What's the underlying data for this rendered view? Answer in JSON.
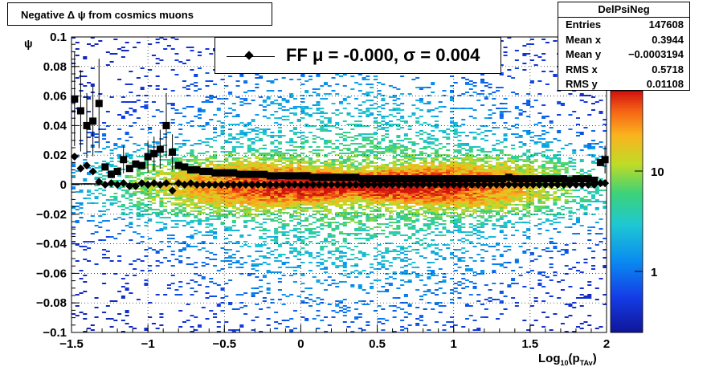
{
  "title": "Negative Δ ψ from cosmics muons",
  "stats": {
    "name": "DelPsiNeg",
    "rows": [
      {
        "label": "Entries",
        "value": "147608"
      },
      {
        "label": "Mean x",
        "value": "0.3944"
      },
      {
        "label": "Mean y",
        "value": "−0.0003194"
      },
      {
        "label": "RMS x",
        "value": "0.5718"
      },
      {
        "label": "RMS y",
        "value": "0.01108"
      }
    ]
  },
  "legend": {
    "text": "FF μ = -0.000, σ =   0.004"
  },
  "chart_data": {
    "type": "heatmap",
    "title": "Negative Δ ψ from cosmics muons",
    "xlabel": "Log10(pTAv)",
    "ylabel": "ψ",
    "xlim": [
      -1.5,
      2
    ],
    "ylim": [
      -0.1,
      0.1
    ],
    "x_ticks": [
      "−1.5",
      "−1",
      "−0.5",
      "0",
      "0.5",
      "1",
      "1.5",
      "2"
    ],
    "y_ticks": [
      "0.1",
      "0.08",
      "0.06",
      "0.04",
      "0.02",
      "0",
      "−0.02",
      "−0.04",
      "−0.06",
      "−0.08",
      "−0.1"
    ],
    "colorbar_ticks": [
      "10",
      "1"
    ],
    "colorbar_scale": "log",
    "grid": true,
    "heatmap_peak": {
      "x": 0.35,
      "y": 0.0,
      "sigma_x": 0.5718,
      "sigma_y": 0.0045
    },
    "series": [
      {
        "name": "",
        "marker": "square",
        "description": "sigma (RMS) per x bin",
        "x": [
          -1.48,
          -1.44,
          -1.4,
          -1.36,
          -1.32,
          -1.28,
          -1.24,
          -1.2,
          -1.16,
          -1.12,
          -1.08,
          -1.04,
          -1.0,
          -0.96,
          -0.92,
          -0.88,
          -0.84,
          -0.8,
          -0.76,
          -0.72,
          -0.68,
          -0.64,
          -0.6,
          -0.56,
          -0.52,
          -0.48,
          -0.44,
          -0.4,
          -0.36,
          -0.32,
          -0.28,
          -0.24,
          -0.2,
          -0.16,
          -0.12,
          -0.08,
          -0.04,
          0.0,
          0.04,
          0.08,
          0.12,
          0.16,
          0.2,
          0.24,
          0.28,
          0.32,
          0.36,
          0.4,
          0.44,
          0.48,
          0.52,
          0.56,
          0.6,
          0.64,
          0.68,
          0.72,
          0.76,
          0.8,
          0.84,
          0.88,
          0.92,
          0.96,
          1.0,
          1.04,
          1.08,
          1.12,
          1.16,
          1.2,
          1.24,
          1.28,
          1.32,
          1.36,
          1.4,
          1.44,
          1.48,
          1.52,
          1.56,
          1.6,
          1.64,
          1.68,
          1.72,
          1.76,
          1.8,
          1.84,
          1.88,
          1.92,
          1.96,
          1.99
        ],
        "y": [
          0.058,
          0.05,
          0.04,
          0.043,
          0.055,
          0.012,
          0.007,
          0.009,
          0.017,
          0.011,
          0.014,
          0.013,
          0.019,
          0.021,
          0.024,
          0.04,
          0.022,
          0.013,
          0.012,
          0.01,
          0.01,
          0.009,
          0.009,
          0.008,
          0.008,
          0.008,
          0.008,
          0.007,
          0.007,
          0.007,
          0.007,
          0.007,
          0.006,
          0.006,
          0.006,
          0.006,
          0.006,
          0.006,
          0.006,
          0.005,
          0.005,
          0.005,
          0.005,
          0.005,
          0.005,
          0.005,
          0.005,
          0.004,
          0.004,
          0.004,
          0.004,
          0.004,
          0.004,
          0.004,
          0.004,
          0.004,
          0.004,
          0.004,
          0.004,
          0.004,
          0.004,
          0.004,
          0.004,
          0.004,
          0.004,
          0.004,
          0.004,
          0.004,
          0.004,
          0.004,
          0.004,
          0.005,
          0.004,
          0.004,
          0.004,
          0.004,
          0.004,
          0.004,
          0.004,
          0.004,
          0.004,
          0.003,
          0.004,
          0.004,
          0.004,
          0.003,
          0.015,
          0.017
        ]
      },
      {
        "name": "FF",
        "marker": "diamond",
        "description": "mean per x bin",
        "x": [
          -1.48,
          -1.44,
          -1.4,
          -1.36,
          -1.32,
          -1.28,
          -1.24,
          -1.2,
          -1.16,
          -1.12,
          -1.08,
          -1.04,
          -1.0,
          -0.96,
          -0.92,
          -0.88,
          -0.84,
          -0.8,
          -0.76,
          -0.72,
          -0.68,
          -0.64,
          -0.6,
          -0.56,
          -0.52,
          -0.48,
          -0.44,
          -0.4,
          -0.36,
          -0.32,
          -0.28,
          -0.24,
          -0.2,
          -0.16,
          -0.12,
          -0.08,
          -0.04,
          0.0,
          0.04,
          0.08,
          0.12,
          0.16,
          0.2,
          0.24,
          0.28,
          0.32,
          0.36,
          0.4,
          0.44,
          0.48,
          0.52,
          0.56,
          0.6,
          0.64,
          0.68,
          0.72,
          0.76,
          0.8,
          0.84,
          0.88,
          0.92,
          0.96,
          1.0,
          1.04,
          1.08,
          1.12,
          1.16,
          1.2,
          1.24,
          1.28,
          1.32,
          1.36,
          1.4,
          1.44,
          1.48,
          1.52,
          1.56,
          1.6,
          1.64,
          1.68,
          1.72,
          1.76,
          1.8,
          1.84,
          1.88,
          1.92,
          1.96,
          1.99
        ],
        "y": [
          0.019,
          0.011,
          0.013,
          0.009,
          0.002,
          0.0,
          0.001,
          0.0,
          0.001,
          -0.001,
          -0.001,
          0.001,
          0.0,
          0.001,
          0.0,
          0.001,
          -0.004,
          0.001,
          0.0,
          0.001,
          0.0,
          0.0,
          0.0,
          0.0,
          0.0,
          0.0,
          0.0,
          0.0,
          0.0,
          0.0,
          0.0,
          0.0,
          0.0,
          0.0,
          0.0,
          0.0,
          0.0,
          0.0,
          0.0,
          0.0,
          0.0,
          0.0,
          0.0,
          0.0,
          0.0,
          0.0,
          0.0,
          0.0,
          0.0,
          0.0,
          0.0,
          0.0,
          0.0,
          0.0,
          0.0,
          0.0,
          0.0,
          0.0,
          0.0,
          0.0,
          0.0,
          0.0,
          0.0,
          0.0,
          0.0,
          0.0,
          0.0,
          0.0,
          0.0,
          0.0,
          0.0,
          0.0,
          0.0,
          0.0,
          0.0,
          0.0,
          0.0,
          0.0,
          0.0,
          0.0,
          0.0,
          0.0,
          0.0,
          0.0,
          0.0,
          0.0,
          0.001,
          0.001
        ]
      }
    ]
  }
}
